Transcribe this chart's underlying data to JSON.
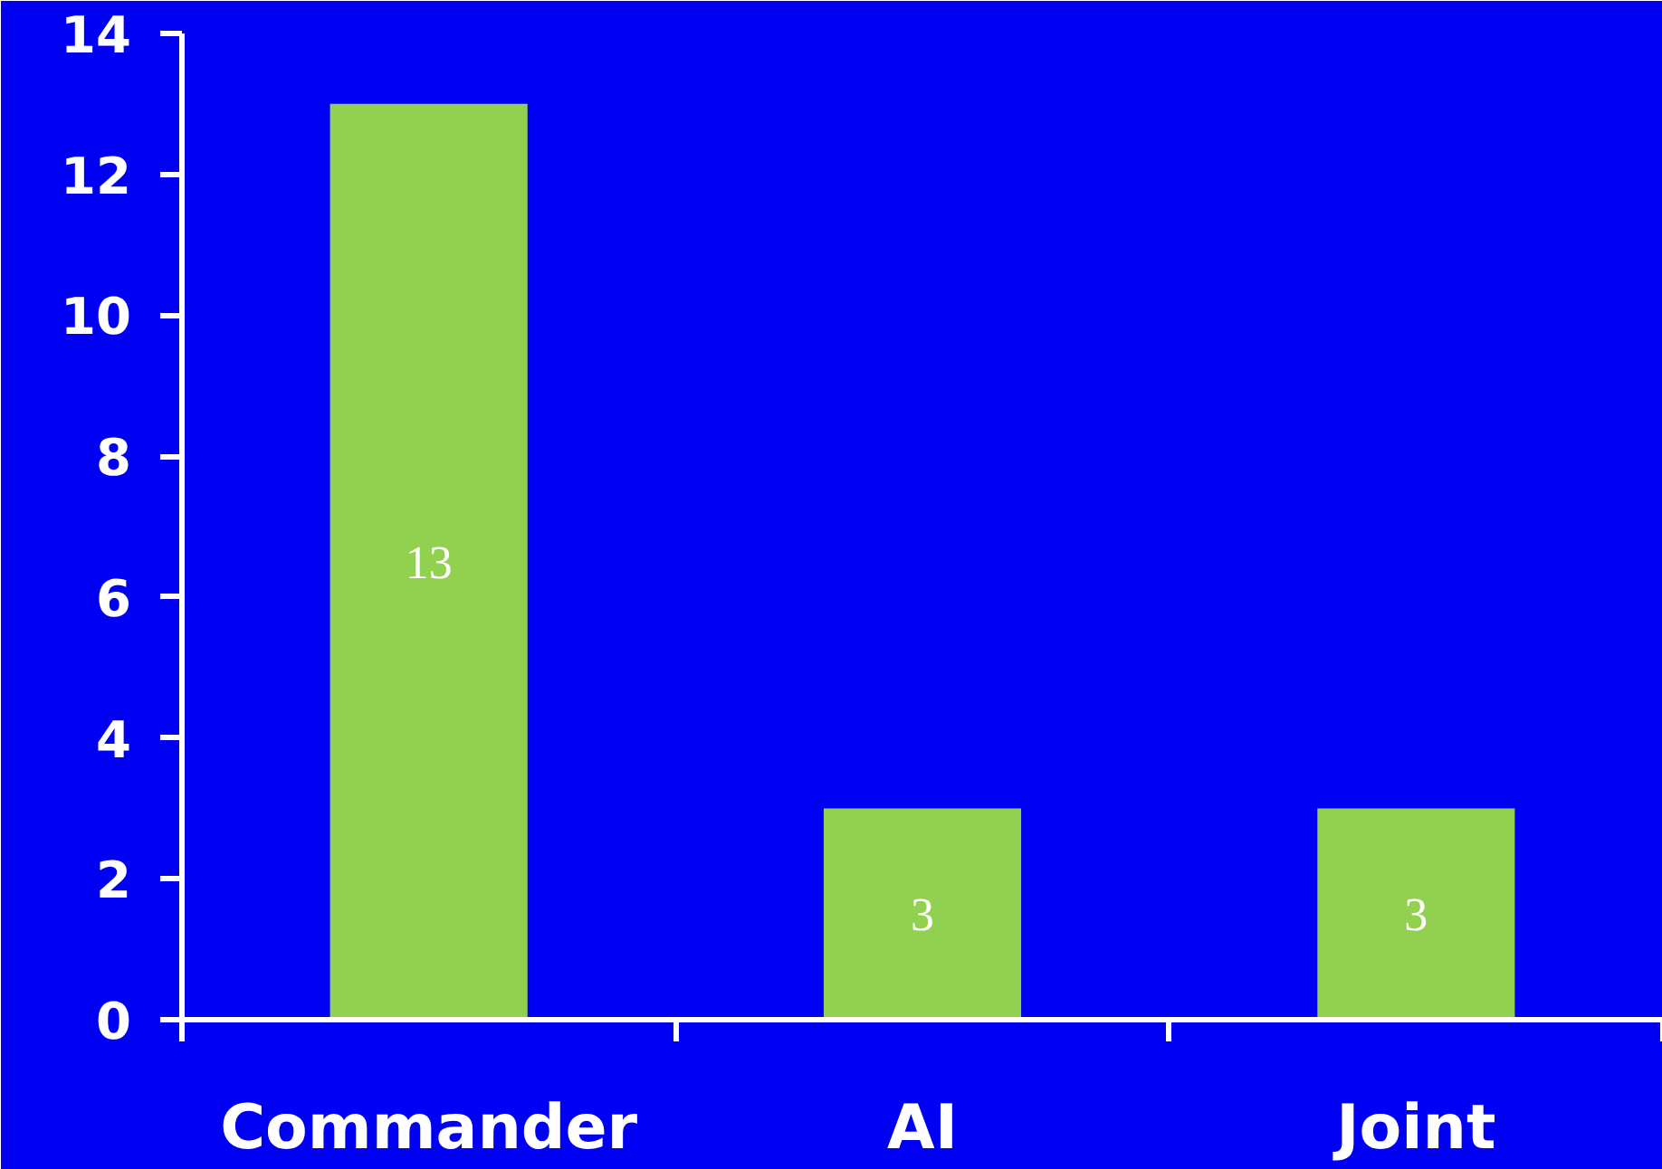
{
  "chart_data": {
    "type": "bar",
    "categories": [
      "Commander",
      "AI",
      "Joint"
    ],
    "values": [
      13,
      3,
      3
    ],
    "color": "#92d050",
    "ylim": [
      0,
      14
    ],
    "yticks": [
      0,
      2,
      4,
      6,
      8,
      10,
      12,
      14
    ],
    "grid": false,
    "data_labels": true
  }
}
